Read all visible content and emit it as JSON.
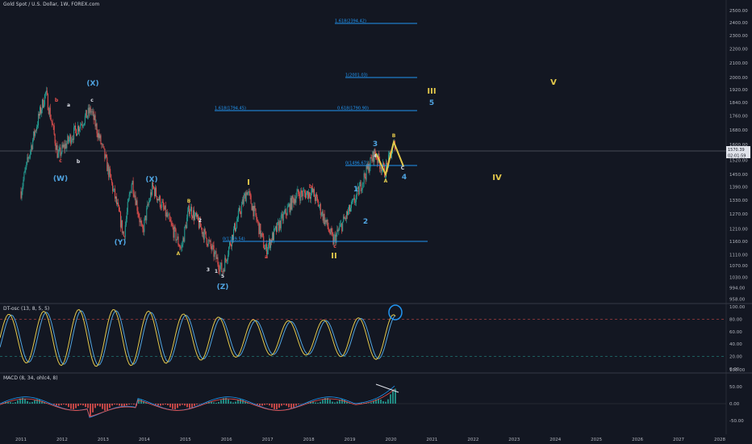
{
  "header": {
    "title": "Gold Spot / U.S. Dollar, 1W, FOREX.com"
  },
  "indicators": {
    "stoch_label": "DT-osc (13, 8, 5, 5)",
    "macd_label": "MACD (8, 34, ohlc4, 8)"
  },
  "price_box": {
    "price": "1570.39",
    "countdown": "02:01:59"
  },
  "colors": {
    "background": "#131722",
    "up": "#26a69a",
    "down": "#ef5350",
    "fib": "#2196f3",
    "yellow": "#e3c84b",
    "blue_wave": "#4fa3e0",
    "white": "#e0e3eb"
  },
  "chart_data": [
    {
      "type": "candlestick",
      "x_ticks": [
        "2011",
        "2012",
        "2013",
        "2014",
        "2015",
        "2016",
        "2017",
        "2018",
        "2019",
        "2020",
        "2021",
        "2022",
        "2023",
        "2024",
        "2025",
        "2026",
        "2027",
        "2028"
      ],
      "y_ticks": [
        "2500.00",
        "2400.00",
        "2300.00",
        "2200.00",
        "2100.00",
        "2000.00",
        "1920.00",
        "1840.00",
        "1760.00",
        "1680.00",
        "1600.00",
        "1520.00",
        "1450.00",
        "1390.00",
        "1330.00",
        "1270.00",
        "1210.00",
        "1160.00",
        "1110.00",
        "1070.00",
        "1030.00",
        "994.00",
        "958.00"
      ],
      "fib_levels": [
        {
          "label": "1.618(2394.42)",
          "value": 2394.42
        },
        {
          "label": "1(2001.03)",
          "value": 2001.03
        },
        {
          "label": "1.618(1794.45)",
          "value": 1794.45
        },
        {
          "label": "0.618(1790.90)",
          "value": 1790.9
        },
        {
          "label": "0(1496.67)",
          "value": 1496.67
        },
        {
          "label": "0(1159.54)",
          "value": 1159.54
        }
      ],
      "key_points": [
        {
          "date": "2011.0",
          "price": 1370
        },
        {
          "date": "2011.6",
          "price": 1900
        },
        {
          "date": "2011.9",
          "price": 1540
        },
        {
          "date": "2012.7",
          "price": 1795
        },
        {
          "date": "2013.5",
          "price": 1180
        },
        {
          "date": "2013.7",
          "price": 1420
        },
        {
          "date": "2013.95",
          "price": 1190
        },
        {
          "date": "2014.2",
          "price": 1390
        },
        {
          "date": "2014.9",
          "price": 1130
        },
        {
          "date": "2015.1",
          "price": 1300
        },
        {
          "date": "2015.9",
          "price": 1050
        },
        {
          "date": "2016.5",
          "price": 1375
        },
        {
          "date": "2016.95",
          "price": 1125
        },
        {
          "date": "2017.7",
          "price": 1355
        },
        {
          "date": "2018.1",
          "price": 1365
        },
        {
          "date": "2018.6",
          "price": 1160
        },
        {
          "date": "2019.1",
          "price": 1320
        },
        {
          "date": "2019.6",
          "price": 1555
        },
        {
          "date": "2019.85",
          "price": 1460
        },
        {
          "date": "2020.1",
          "price": 1610
        }
      ],
      "wave_labels": [
        {
          "text": "(X)",
          "color": "blue_wave"
        },
        {
          "text": "(W)",
          "color": "blue_wave"
        },
        {
          "text": "(Y)",
          "color": "blue_wave"
        },
        {
          "text": "(X)",
          "color": "blue_wave"
        },
        {
          "text": "(Z)",
          "color": "blue_wave"
        },
        {
          "text": "I",
          "color": "yellow"
        },
        {
          "text": "II",
          "color": "yellow"
        },
        {
          "text": "III",
          "color": "yellow"
        },
        {
          "text": "IV",
          "color": "yellow"
        },
        {
          "text": "V",
          "color": "yellow"
        },
        {
          "text": "1",
          "color": "blue_wave"
        },
        {
          "text": "2",
          "color": "blue_wave"
        },
        {
          "text": "3",
          "color": "blue_wave"
        },
        {
          "text": "4",
          "color": "blue_wave"
        },
        {
          "text": "5",
          "color": "blue_wave"
        },
        {
          "text": "a",
          "color": "white"
        },
        {
          "text": "b",
          "color": "down"
        },
        {
          "text": "c",
          "color": "down"
        },
        {
          "text": "b",
          "color": "white"
        },
        {
          "text": "c",
          "color": "white"
        },
        {
          "text": "a",
          "color": "down"
        },
        {
          "text": "b",
          "color": "down"
        },
        {
          "text": "c",
          "color": "down"
        },
        {
          "text": "A",
          "color": "yellow"
        },
        {
          "text": "B",
          "color": "yellow"
        },
        {
          "text": "A",
          "color": "yellow"
        },
        {
          "text": "B",
          "color": "yellow"
        },
        {
          "text": "C",
          "color": "white"
        },
        {
          "text": "1",
          "color": "white"
        },
        {
          "text": "2",
          "color": "white"
        },
        {
          "text": "3",
          "color": "white"
        },
        {
          "text": "4",
          "color": "white"
        },
        {
          "text": "5",
          "color": "white"
        }
      ]
    },
    {
      "type": "line",
      "name": "DT-osc",
      "y_ticks": [
        "100.00",
        "80.00",
        "60.00",
        "40.00",
        "20.00",
        "0.00"
      ],
      "levels": [
        80,
        20
      ]
    },
    {
      "type": "histogram",
      "name": "MACD",
      "y_ticks": [
        "100.00",
        "50.00",
        "0.00",
        "-50.00"
      ]
    }
  ]
}
